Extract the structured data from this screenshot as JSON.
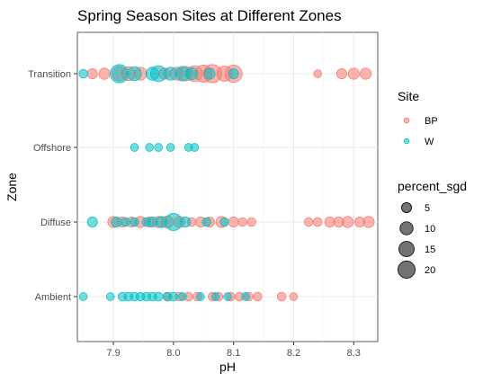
{
  "chart_data": {
    "type": "scatter",
    "title": "Spring Season Sites at Different Zones",
    "xlabel": "pH",
    "ylabel": "Zone",
    "xlim": [
      7.84,
      8.34
    ],
    "x_ticks": [
      7.9,
      8.0,
      8.1,
      8.2,
      8.3
    ],
    "x_tick_labels": [
      "7.9",
      "8.0",
      "8.1",
      "8.2",
      "8.3"
    ],
    "categories": [
      "Ambient",
      "Diffuse",
      "Offshore",
      "Transition"
    ],
    "grid": true,
    "legend_placement": "right",
    "site_legend": {
      "title": "Site",
      "entries": [
        {
          "label": "BP",
          "color": "#F8766D"
        },
        {
          "label": "W",
          "color": "#00BFC4"
        }
      ]
    },
    "size_legend": {
      "title": "percent_sgd",
      "values": [
        5,
        10,
        15,
        20
      ],
      "labels": [
        "5",
        "10",
        "15",
        "20"
      ]
    },
    "series": [
      {
        "name": "BP",
        "color": "#F8766D",
        "points": [
          {
            "zone": "Transition",
            "x": 7.865,
            "size": 3
          },
          {
            "zone": "Transition",
            "x": 7.885,
            "size": 4
          },
          {
            "zone": "Transition",
            "x": 7.91,
            "size": 8
          },
          {
            "zone": "Transition",
            "x": 7.925,
            "size": 7
          },
          {
            "zone": "Transition",
            "x": 7.945,
            "size": 6
          },
          {
            "zone": "Transition",
            "x": 7.985,
            "size": 4
          },
          {
            "zone": "Transition",
            "x": 8.005,
            "size": 6
          },
          {
            "zone": "Transition",
            "x": 8.02,
            "size": 8
          },
          {
            "zone": "Transition",
            "x": 8.035,
            "size": 10
          },
          {
            "zone": "Transition",
            "x": 8.05,
            "size": 12
          },
          {
            "zone": "Transition",
            "x": 8.065,
            "size": 14
          },
          {
            "zone": "Transition",
            "x": 8.085,
            "size": 9
          },
          {
            "zone": "Transition",
            "x": 8.1,
            "size": 12
          },
          {
            "zone": "Transition",
            "x": 8.24,
            "size": 1.5
          },
          {
            "zone": "Transition",
            "x": 8.28,
            "size": 3
          },
          {
            "zone": "Transition",
            "x": 8.3,
            "size": 4
          },
          {
            "zone": "Transition",
            "x": 8.32,
            "size": 4
          },
          {
            "zone": "Diffuse",
            "x": 7.9,
            "size": 4
          },
          {
            "zone": "Diffuse",
            "x": 7.915,
            "size": 3
          },
          {
            "zone": "Diffuse",
            "x": 7.93,
            "size": 3
          },
          {
            "zone": "Diffuse",
            "x": 7.945,
            "size": 4
          },
          {
            "zone": "Diffuse",
            "x": 7.96,
            "size": 3
          },
          {
            "zone": "Diffuse",
            "x": 7.975,
            "size": 4
          },
          {
            "zone": "Diffuse",
            "x": 7.99,
            "size": 5
          },
          {
            "zone": "Diffuse",
            "x": 8.01,
            "size": 4
          },
          {
            "zone": "Diffuse",
            "x": 8.03,
            "size": 2
          },
          {
            "zone": "Diffuse",
            "x": 8.045,
            "size": 3
          },
          {
            "zone": "Diffuse",
            "x": 8.06,
            "size": 3
          },
          {
            "zone": "Diffuse",
            "x": 8.08,
            "size": 4
          },
          {
            "zone": "Diffuse",
            "x": 8.1,
            "size": 3
          },
          {
            "zone": "Diffuse",
            "x": 8.115,
            "size": 2
          },
          {
            "zone": "Diffuse",
            "x": 8.13,
            "size": 2
          },
          {
            "zone": "Diffuse",
            "x": 8.225,
            "size": 2
          },
          {
            "zone": "Diffuse",
            "x": 8.24,
            "size": 2
          },
          {
            "zone": "Diffuse",
            "x": 8.26,
            "size": 3
          },
          {
            "zone": "Diffuse",
            "x": 8.275,
            "size": 3
          },
          {
            "zone": "Diffuse",
            "x": 8.29,
            "size": 4
          },
          {
            "zone": "Diffuse",
            "x": 8.31,
            "size": 3
          },
          {
            "zone": "Diffuse",
            "x": 8.325,
            "size": 4
          },
          {
            "zone": "Ambient",
            "x": 7.99,
            "size": 2
          },
          {
            "zone": "Ambient",
            "x": 8.01,
            "size": 2
          },
          {
            "zone": "Ambient",
            "x": 8.025,
            "size": 2
          },
          {
            "zone": "Ambient",
            "x": 8.04,
            "size": 2
          },
          {
            "zone": "Ambient",
            "x": 8.065,
            "size": 2
          },
          {
            "zone": "Ambient",
            "x": 8.075,
            "size": 2
          },
          {
            "zone": "Ambient",
            "x": 8.095,
            "size": 2
          },
          {
            "zone": "Ambient",
            "x": 8.11,
            "size": 2
          },
          {
            "zone": "Ambient",
            "x": 8.125,
            "size": 2
          },
          {
            "zone": "Ambient",
            "x": 8.14,
            "size": 2
          },
          {
            "zone": "Ambient",
            "x": 8.18,
            "size": 2
          },
          {
            "zone": "Ambient",
            "x": 8.2,
            "size": 1.5
          }
        ]
      },
      {
        "name": "W",
        "color": "#00BFC4",
        "points": [
          {
            "zone": "Transition",
            "x": 7.85,
            "size": 2
          },
          {
            "zone": "Transition",
            "x": 7.91,
            "size": 14
          },
          {
            "zone": "Transition",
            "x": 7.935,
            "size": 7
          },
          {
            "zone": "Transition",
            "x": 7.965,
            "size": 6
          },
          {
            "zone": "Transition",
            "x": 7.975,
            "size": 10
          },
          {
            "zone": "Transition",
            "x": 7.995,
            "size": 6
          },
          {
            "zone": "Transition",
            "x": 8.015,
            "size": 8
          },
          {
            "zone": "Transition",
            "x": 8.03,
            "size": 5
          },
          {
            "zone": "Transition",
            "x": 8.06,
            "size": 4
          },
          {
            "zone": "Transition",
            "x": 8.1,
            "size": 3
          },
          {
            "zone": "Offshore",
            "x": 7.935,
            "size": 1.5
          },
          {
            "zone": "Offshore",
            "x": 7.96,
            "size": 1.5
          },
          {
            "zone": "Offshore",
            "x": 7.975,
            "size": 1.5
          },
          {
            "zone": "Offshore",
            "x": 7.995,
            "size": 1.5
          },
          {
            "zone": "Offshore",
            "x": 8.025,
            "size": 1.5
          },
          {
            "zone": "Offshore",
            "x": 8.035,
            "size": 1.5
          },
          {
            "zone": "Diffuse",
            "x": 7.865,
            "size": 3
          },
          {
            "zone": "Diffuse",
            "x": 7.905,
            "size": 3
          },
          {
            "zone": "Diffuse",
            "x": 7.92,
            "size": 2
          },
          {
            "zone": "Diffuse",
            "x": 7.935,
            "size": 2
          },
          {
            "zone": "Diffuse",
            "x": 7.955,
            "size": 2
          },
          {
            "zone": "Diffuse",
            "x": 7.965,
            "size": 3
          },
          {
            "zone": "Diffuse",
            "x": 7.98,
            "size": 4
          },
          {
            "zone": "Diffuse",
            "x": 8.0,
            "size": 12
          },
          {
            "zone": "Diffuse",
            "x": 8.02,
            "size": 3
          },
          {
            "zone": "Diffuse",
            "x": 8.055,
            "size": 2
          },
          {
            "zone": "Diffuse",
            "x": 8.085,
            "size": 2
          },
          {
            "zone": "Ambient",
            "x": 7.85,
            "size": 1.5
          },
          {
            "zone": "Ambient",
            "x": 7.895,
            "size": 1.5
          },
          {
            "zone": "Ambient",
            "x": 7.915,
            "size": 2
          },
          {
            "zone": "Ambient",
            "x": 7.925,
            "size": 2
          },
          {
            "zone": "Ambient",
            "x": 7.935,
            "size": 2
          },
          {
            "zone": "Ambient",
            "x": 7.945,
            "size": 2
          },
          {
            "zone": "Ambient",
            "x": 7.955,
            "size": 2
          },
          {
            "zone": "Ambient",
            "x": 7.965,
            "size": 2
          },
          {
            "zone": "Ambient",
            "x": 7.975,
            "size": 2
          },
          {
            "zone": "Ambient",
            "x": 7.99,
            "size": 2
          },
          {
            "zone": "Ambient",
            "x": 8.0,
            "size": 2
          },
          {
            "zone": "Ambient",
            "x": 8.015,
            "size": 1.5
          },
          {
            "zone": "Ambient",
            "x": 8.045,
            "size": 1.5
          },
          {
            "zone": "Ambient",
            "x": 8.07,
            "size": 1.5
          },
          {
            "zone": "Ambient",
            "x": 8.09,
            "size": 1.5
          },
          {
            "zone": "Ambient",
            "x": 8.12,
            "size": 1.5
          }
        ]
      }
    ]
  }
}
